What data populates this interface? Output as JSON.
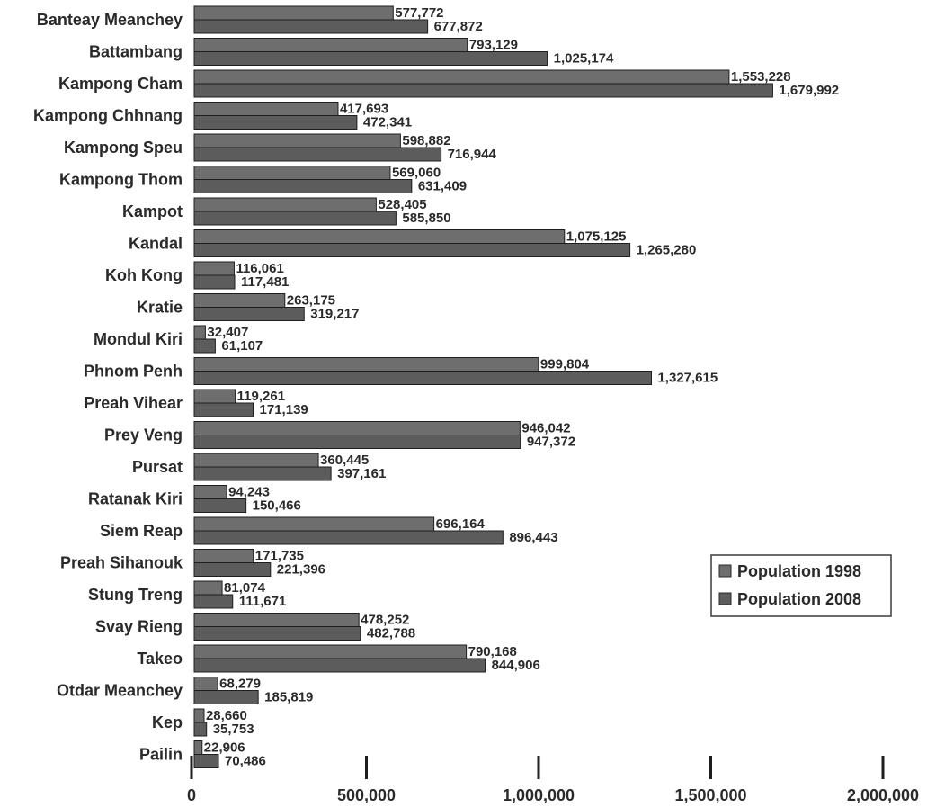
{
  "chart_data": {
    "type": "bar",
    "orientation": "horizontal",
    "categories": [
      "Banteay Meanchey",
      "Battambang",
      "Kampong Cham",
      "Kampong Chhnang",
      "Kampong Speu",
      "Kampong Thom",
      "Kampot",
      "Kandal",
      "Koh Kong",
      "Kratie",
      "Mondul Kiri",
      "Phnom Penh",
      "Preah Vihear",
      "Prey Veng",
      "Pursat",
      "Ratanak Kiri",
      "Siem Reap",
      "Preah Sihanouk",
      "Stung Treng",
      "Svay Rieng",
      "Takeo",
      "Otdar Meanchey",
      "Kep",
      "Pailin"
    ],
    "series": [
      {
        "name": "Population 1998",
        "color": "#6e6e6e",
        "values": [
          577772,
          793129,
          1553228,
          417693,
          598882,
          569060,
          528405,
          1075125,
          116061,
          263175,
          32407,
          999804,
          119261,
          946042,
          360445,
          94243,
          696164,
          171735,
          81074,
          478252,
          790168,
          68279,
          28660,
          22906
        ],
        "labels": [
          "577,772",
          "793,129",
          "1,553,228",
          "417,693",
          "598,882",
          "569,060",
          "528,405",
          "1,075,125",
          "116,061",
          "263,175",
          "32,407",
          "999,804",
          "119,261",
          "946,042",
          "360,445",
          "94,243",
          "696,164",
          "171,735",
          "81,074",
          "478,252",
          "790,168",
          "68,279",
          "28,660",
          "22,906"
        ]
      },
      {
        "name": "Population 2008",
        "color": "#5c5c5c",
        "values": [
          677872,
          1025174,
          1679992,
          472341,
          716944,
          631409,
          585850,
          1265280,
          117481,
          319217,
          61107,
          1327615,
          171139,
          947372,
          397161,
          150466,
          896443,
          221396,
          111671,
          482788,
          844906,
          185819,
          35753,
          70486
        ],
        "labels": [
          "677,872",
          "1,025,174",
          "1,679,992",
          "472,341",
          "716,944",
          "631,409",
          "585,850",
          "1,265,280",
          "117,481",
          "319,217",
          "61,107",
          "1,327,615",
          "171,139",
          "947,372",
          "397,161",
          "150,466",
          "896,443",
          "221,396",
          "111,671",
          "482,788",
          "844,906",
          "185,819",
          "35,753",
          "70,486"
        ]
      }
    ],
    "title": "",
    "xlabel": "",
    "ylabel": "",
    "xlim": [
      0,
      2000000
    ],
    "x_ticks": [
      0,
      500000,
      1000000,
      1500000,
      2000000
    ],
    "x_tick_labels": [
      "0",
      "500,000",
      "1,000,000",
      "1,500,000",
      "2,000,000"
    ],
    "grid": false,
    "legend_position": "right"
  }
}
